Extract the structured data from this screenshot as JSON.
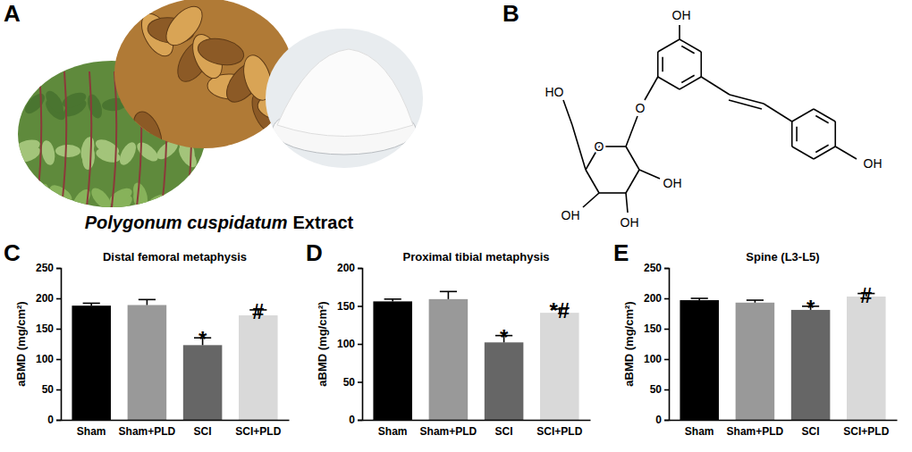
{
  "chart_data": [
    {
      "type": "bar",
      "title": "Distal femoral metaphysis",
      "ylabel": "aBMD (mg/cm²)",
      "categories": [
        "Sham",
        "Sham+PLD",
        "SCI",
        "SCI+PLD"
      ],
      "values": [
        188,
        189,
        123,
        172
      ],
      "errors": [
        4,
        9,
        12,
        9
      ],
      "significance": [
        null,
        null,
        "*",
        "#"
      ],
      "colors": [
        "#000000",
        "#999999",
        "#666666",
        "#d9d9d9"
      ],
      "ylim": [
        0,
        250
      ],
      "yticks": [
        0,
        50,
        100,
        150,
        200,
        250
      ],
      "grid": false
    },
    {
      "type": "bar",
      "title": "Proximal tibial metaphysis",
      "ylabel": "aBMD (mg/cm²)",
      "categories": [
        "Sham",
        "Sham+PLD",
        "SCI",
        "SCI+PLD"
      ],
      "values": [
        156,
        159,
        102,
        141
      ],
      "errors": [
        3,
        10,
        9,
        5
      ],
      "significance": [
        null,
        null,
        "*",
        "*#"
      ],
      "colors": [
        "#000000",
        "#999999",
        "#666666",
        "#d9d9d9"
      ],
      "ylim": [
        0,
        200
      ],
      "yticks": [
        0,
        50,
        100,
        150,
        200
      ],
      "grid": false
    },
    {
      "type": "bar",
      "title": "Spine (L3-L5)",
      "ylabel": "aBMD (mg/cm²)",
      "categories": [
        "Sham",
        "Sham+PLD",
        "SCI",
        "SCI+PLD"
      ],
      "values": [
        197,
        193,
        181,
        203
      ],
      "errors": [
        3,
        4,
        6,
        5
      ],
      "significance": [
        null,
        null,
        "*",
        "#"
      ],
      "colors": [
        "#000000",
        "#999999",
        "#666666",
        "#d9d9d9"
      ],
      "ylim": [
        0,
        250
      ],
      "yticks": [
        0,
        50,
        100,
        150,
        200,
        250
      ],
      "grid": false
    }
  ],
  "panel_labels": [
    "A",
    "B",
    "C",
    "D",
    "E"
  ],
  "extract_label": {
    "species": "Polygonum cuspidatum",
    "suffix": "Extract"
  },
  "structure_labels": [
    "OH",
    "HO",
    "O",
    "O",
    "OH",
    "OH",
    "OH",
    "OH"
  ]
}
